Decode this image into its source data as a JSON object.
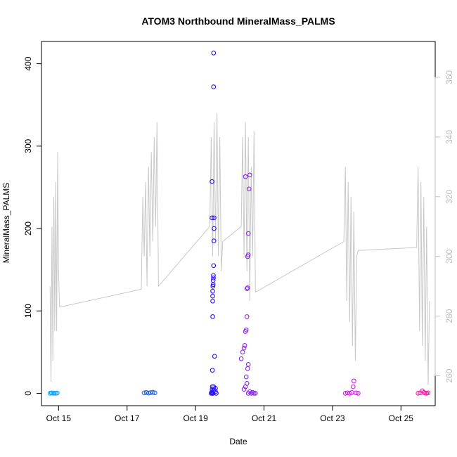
{
  "chart_data": {
    "type": "scatter",
    "title": "ATOM3 Northbound MineralMass_PALMS",
    "xlabel": "Date",
    "ylabel": "MineralMass_PALMS",
    "xlim": [
      "2017-10-14 12:00",
      "2017-10-26 00:00"
    ],
    "ylim": [
      -15,
      427
    ],
    "y2lim": [
      250,
      372
    ],
    "x_ticks": [
      {
        "label": "Oct 15",
        "date": "2017-10-15"
      },
      {
        "label": "Oct 17",
        "date": "2017-10-17"
      },
      {
        "label": "Oct 19",
        "date": "2017-10-19"
      },
      {
        "label": "Oct 21",
        "date": "2017-10-21"
      },
      {
        "label": "Oct 23",
        "date": "2017-10-23"
      },
      {
        "label": "Oct 25",
        "date": "2017-10-25"
      }
    ],
    "y_ticks": [
      0,
      100,
      200,
      300,
      400
    ],
    "y2_ticks": [
      260,
      280,
      300,
      320,
      340,
      360
    ],
    "grid": false,
    "legend": "none",
    "colors": {
      "axis": "#000000",
      "right_axis": "#bebebe",
      "line": "#c8c8c8"
    },
    "series": [
      {
        "marker": "open-circle",
        "axis": "left",
        "groups": [
          {
            "color": "#1aa3ee",
            "x": [
              "2017-10-14 18:00",
              "2017-10-14 19:00",
              "2017-10-14 20:00",
              "2017-10-14 21:00",
              "2017-10-14 22:00",
              "2017-10-14 23:00"
            ],
            "y": [
              0,
              0.5,
              0,
              0.3,
              0,
              0.4
            ]
          },
          {
            "color": "#1f5ef0",
            "x": [
              "2017-10-17 12:00",
              "2017-10-17 13:30",
              "2017-10-17 15:00",
              "2017-10-17 16:30",
              "2017-10-17 18:00",
              "2017-10-17 19:30"
            ],
            "y": [
              0.5,
              1,
              0.3,
              0.8,
              1.2,
              0.5
            ]
          },
          {
            "color": "#2d14f2",
            "x": [
              "2017-10-19 11:00",
              "2017-10-19 11:20",
              "2017-10-19 11:30",
              "2017-10-19 11:40",
              "2017-10-19 11:45",
              "2017-10-19 11:50",
              "2017-10-19 12:00",
              "2017-10-19 12:00",
              "2017-10-19 12:00",
              "2017-10-19 12:00",
              "2017-10-19 12:10",
              "2017-10-19 12:20",
              "2017-10-19 12:20",
              "2017-10-19 12:30",
              "2017-10-19 12:30",
              "2017-10-19 12:40",
              "2017-10-19 12:50",
              "2017-10-19 13:00",
              "2017-10-19 13:00",
              "2017-10-19 11:30",
              "2017-10-19 11:30",
              "2017-10-19 12:40",
              "2017-10-19 12:40",
              "2017-10-19 13:20",
              "2017-10-19 11:40",
              "2017-10-19 12:20",
              "2017-10-19 12:00",
              "2017-10-19 12:30",
              "2017-10-19 13:00",
              "2017-10-19 12:40",
              "2017-10-19 14:00",
              "2017-10-19 14:00",
              "2017-10-19 14:30"
            ],
            "y": [
              0,
              0,
              2,
              5,
              8,
              28,
              93,
              112,
              118,
              124,
              130,
              132,
              137,
              140,
              143,
              155,
              185,
              200,
              213,
              213,
              257,
              372,
              413,
              45,
              1,
              0,
              0,
              3,
              4,
              8,
              2,
              6,
              0
            ]
          },
          {
            "color": "#8a2be2",
            "x": [
              "2017-10-20 08:00",
              "2017-10-20 09:00",
              "2017-10-20 10:00",
              "2017-10-20 10:30",
              "2017-10-20 11:00",
              "2017-10-20 11:30",
              "2017-10-20 12:00",
              "2017-10-20 12:00",
              "2017-10-20 12:30",
              "2017-10-20 12:30",
              "2017-10-20 13:00",
              "2017-10-20 13:00",
              "2017-10-20 13:30",
              "2017-10-20 14:00",
              "2017-10-20 11:00",
              "2017-10-20 11:30",
              "2017-10-20 12:30",
              "2017-10-20 13:00",
              "2017-10-20 10:00",
              "2017-10-20 11:00",
              "2017-10-20 12:00",
              "2017-10-20 13:00",
              "2017-10-20 14:00",
              "2017-10-20 15:00",
              "2017-10-20 16:00",
              "2017-10-20 17:00",
              "2017-10-20 18:00"
            ],
            "y": [
              42,
              50,
              55,
              58,
              75,
              77,
              93,
              127,
              128,
              166,
              168,
              194,
              248,
              265,
              263,
              20,
              30,
              35,
              5,
              8,
              12,
              0,
              2,
              0,
              1,
              0,
              0
            ]
          },
          {
            "color": "#d21ee0",
            "x": [
              "2017-10-23 09:00",
              "2017-10-23 10:30",
              "2017-10-23 12:00",
              "2017-10-23 13:30",
              "2017-10-23 14:30",
              "2017-10-23 15:00",
              "2017-10-23 16:30",
              "2017-10-23 18:00"
            ],
            "y": [
              0,
              0.5,
              0,
              1,
              8,
              15,
              0.5,
              0
            ]
          },
          {
            "color": "#ff1aa6",
            "x": [
              "2017-10-25 12:00",
              "2017-10-25 13:30",
              "2017-10-25 15:00",
              "2017-10-25 16:00",
              "2017-10-25 17:00",
              "2017-10-25 18:00",
              "2017-10-25 19:00"
            ],
            "y": [
              0,
              0.5,
              3,
              1,
              0.3,
              0,
              0.5
            ]
          }
        ]
      },
      {
        "type": "line",
        "axis": "right",
        "color": "#c8c8c8",
        "x": [
          "2017-10-14 18:00",
          "2017-10-14 18:40",
          "2017-10-14 19:20",
          "2017-10-14 20:00",
          "2017-10-14 20:40",
          "2017-10-14 21:20",
          "2017-10-14 22:00",
          "2017-10-14 22:40",
          "2017-10-14 23:20",
          "2017-10-15 00:00",
          "2017-10-15 00:40",
          "2017-10-17 10:00",
          "2017-10-17 11:00",
          "2017-10-17 12:00",
          "2017-10-17 13:00",
          "2017-10-17 14:00",
          "2017-10-17 15:00",
          "2017-10-17 16:00",
          "2017-10-17 17:00",
          "2017-10-17 18:00",
          "2017-10-17 19:00",
          "2017-10-17 20:00",
          "2017-10-17 21:00",
          "2017-10-17 22:00",
          "2017-10-19 10:00",
          "2017-10-19 11:00",
          "2017-10-19 12:00",
          "2017-10-19 13:00",
          "2017-10-19 14:00",
          "2017-10-19 15:00",
          "2017-10-19 16:00",
          "2017-10-19 17:00",
          "2017-10-19 18:00",
          "2017-10-19 19:00",
          "2017-10-20 08:00",
          "2017-10-20 09:00",
          "2017-10-20 10:00",
          "2017-10-20 11:00",
          "2017-10-20 12:00",
          "2017-10-20 13:00",
          "2017-10-20 14:00",
          "2017-10-20 15:00",
          "2017-10-20 16:00",
          "2017-10-20 17:00",
          "2017-10-20 18:00",
          "2017-10-23 08:00",
          "2017-10-23 09:00",
          "2017-10-23 10:00",
          "2017-10-23 11:00",
          "2017-10-23 12:00",
          "2017-10-23 13:00",
          "2017-10-23 14:00",
          "2017-10-23 15:00",
          "2017-10-23 16:00",
          "2017-10-23 17:00",
          "2017-10-23 18:00",
          "2017-10-25 11:00",
          "2017-10-25 12:00",
          "2017-10-25 13:00",
          "2017-10-25 14:00",
          "2017-10-25 15:00",
          "2017-10-25 16:00",
          "2017-10-25 17:00",
          "2017-10-25 18:00",
          "2017-10-25 19:00",
          "2017-10-25 20:00"
        ],
        "y": [
          290,
          258,
          310,
          265,
          320,
          275,
          325,
          275,
          335,
          295,
          283,
          289,
          320,
          300,
          325,
          290,
          330,
          300,
          335,
          305,
          340,
          310,
          345,
          290,
          310,
          340,
          300,
          345,
          305,
          348,
          300,
          340,
          295,
          305,
          310,
          340,
          300,
          345,
          295,
          340,
          285,
          330,
          300,
          342,
          288,
          305,
          330,
          285,
          325,
          278,
          320,
          270,
          315,
          265,
          300,
          302,
          303,
          330,
          275,
          325,
          270,
          320,
          265,
          310,
          257,
          285
        ]
      }
    ]
  }
}
